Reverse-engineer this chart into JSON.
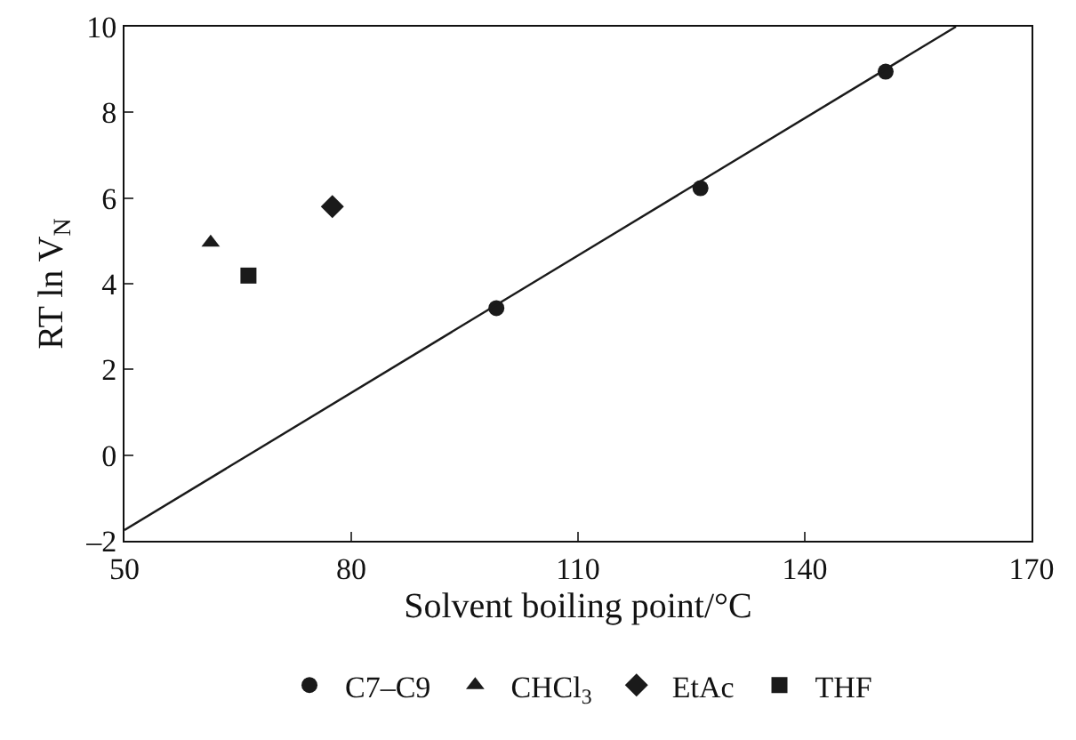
{
  "chart_data": {
    "type": "scatter",
    "xlabel": "Solvent boiling point/°C",
    "ylabel": "RT ln V$_{N}$",
    "xlim": [
      50,
      170
    ],
    "xticks": [
      50,
      80,
      110,
      140,
      170
    ],
    "ylim": [
      -2,
      10
    ],
    "yticks": [
      {
        "value": -2,
        "label": "–2"
      },
      0,
      2,
      4,
      6,
      8,
      10
    ],
    "grid": false,
    "legend": "bottom",
    "series": [
      {
        "name": "C7–C9",
        "color": "#1a1a1a",
        "marker": "circle",
        "x": [
          99.2,
          126.2,
          150.7
        ],
        "values": [
          3.43,
          6.23,
          8.95
        ]
      },
      {
        "name": "CHCl$_{3}$",
        "color": "#1a1a1a",
        "marker": "triangle",
        "x": [
          61.4
        ],
        "values": [
          4.96
        ]
      },
      {
        "name": "EtAc",
        "color": "#1a1a1a",
        "marker": "diamond",
        "x": [
          77.5
        ],
        "values": [
          5.8
        ]
      },
      {
        "name": "THF",
        "color": "#1a1a1a",
        "marker": "square",
        "x": [
          66.4
        ],
        "values": [
          4.19
        ]
      },
      {
        "type": "line",
        "color": "#1a1a1a",
        "marker": "none",
        "line_style": "solid",
        "x": [
          50,
          160
        ],
        "values": [
          -1.75,
          10
        ]
      }
    ]
  }
}
